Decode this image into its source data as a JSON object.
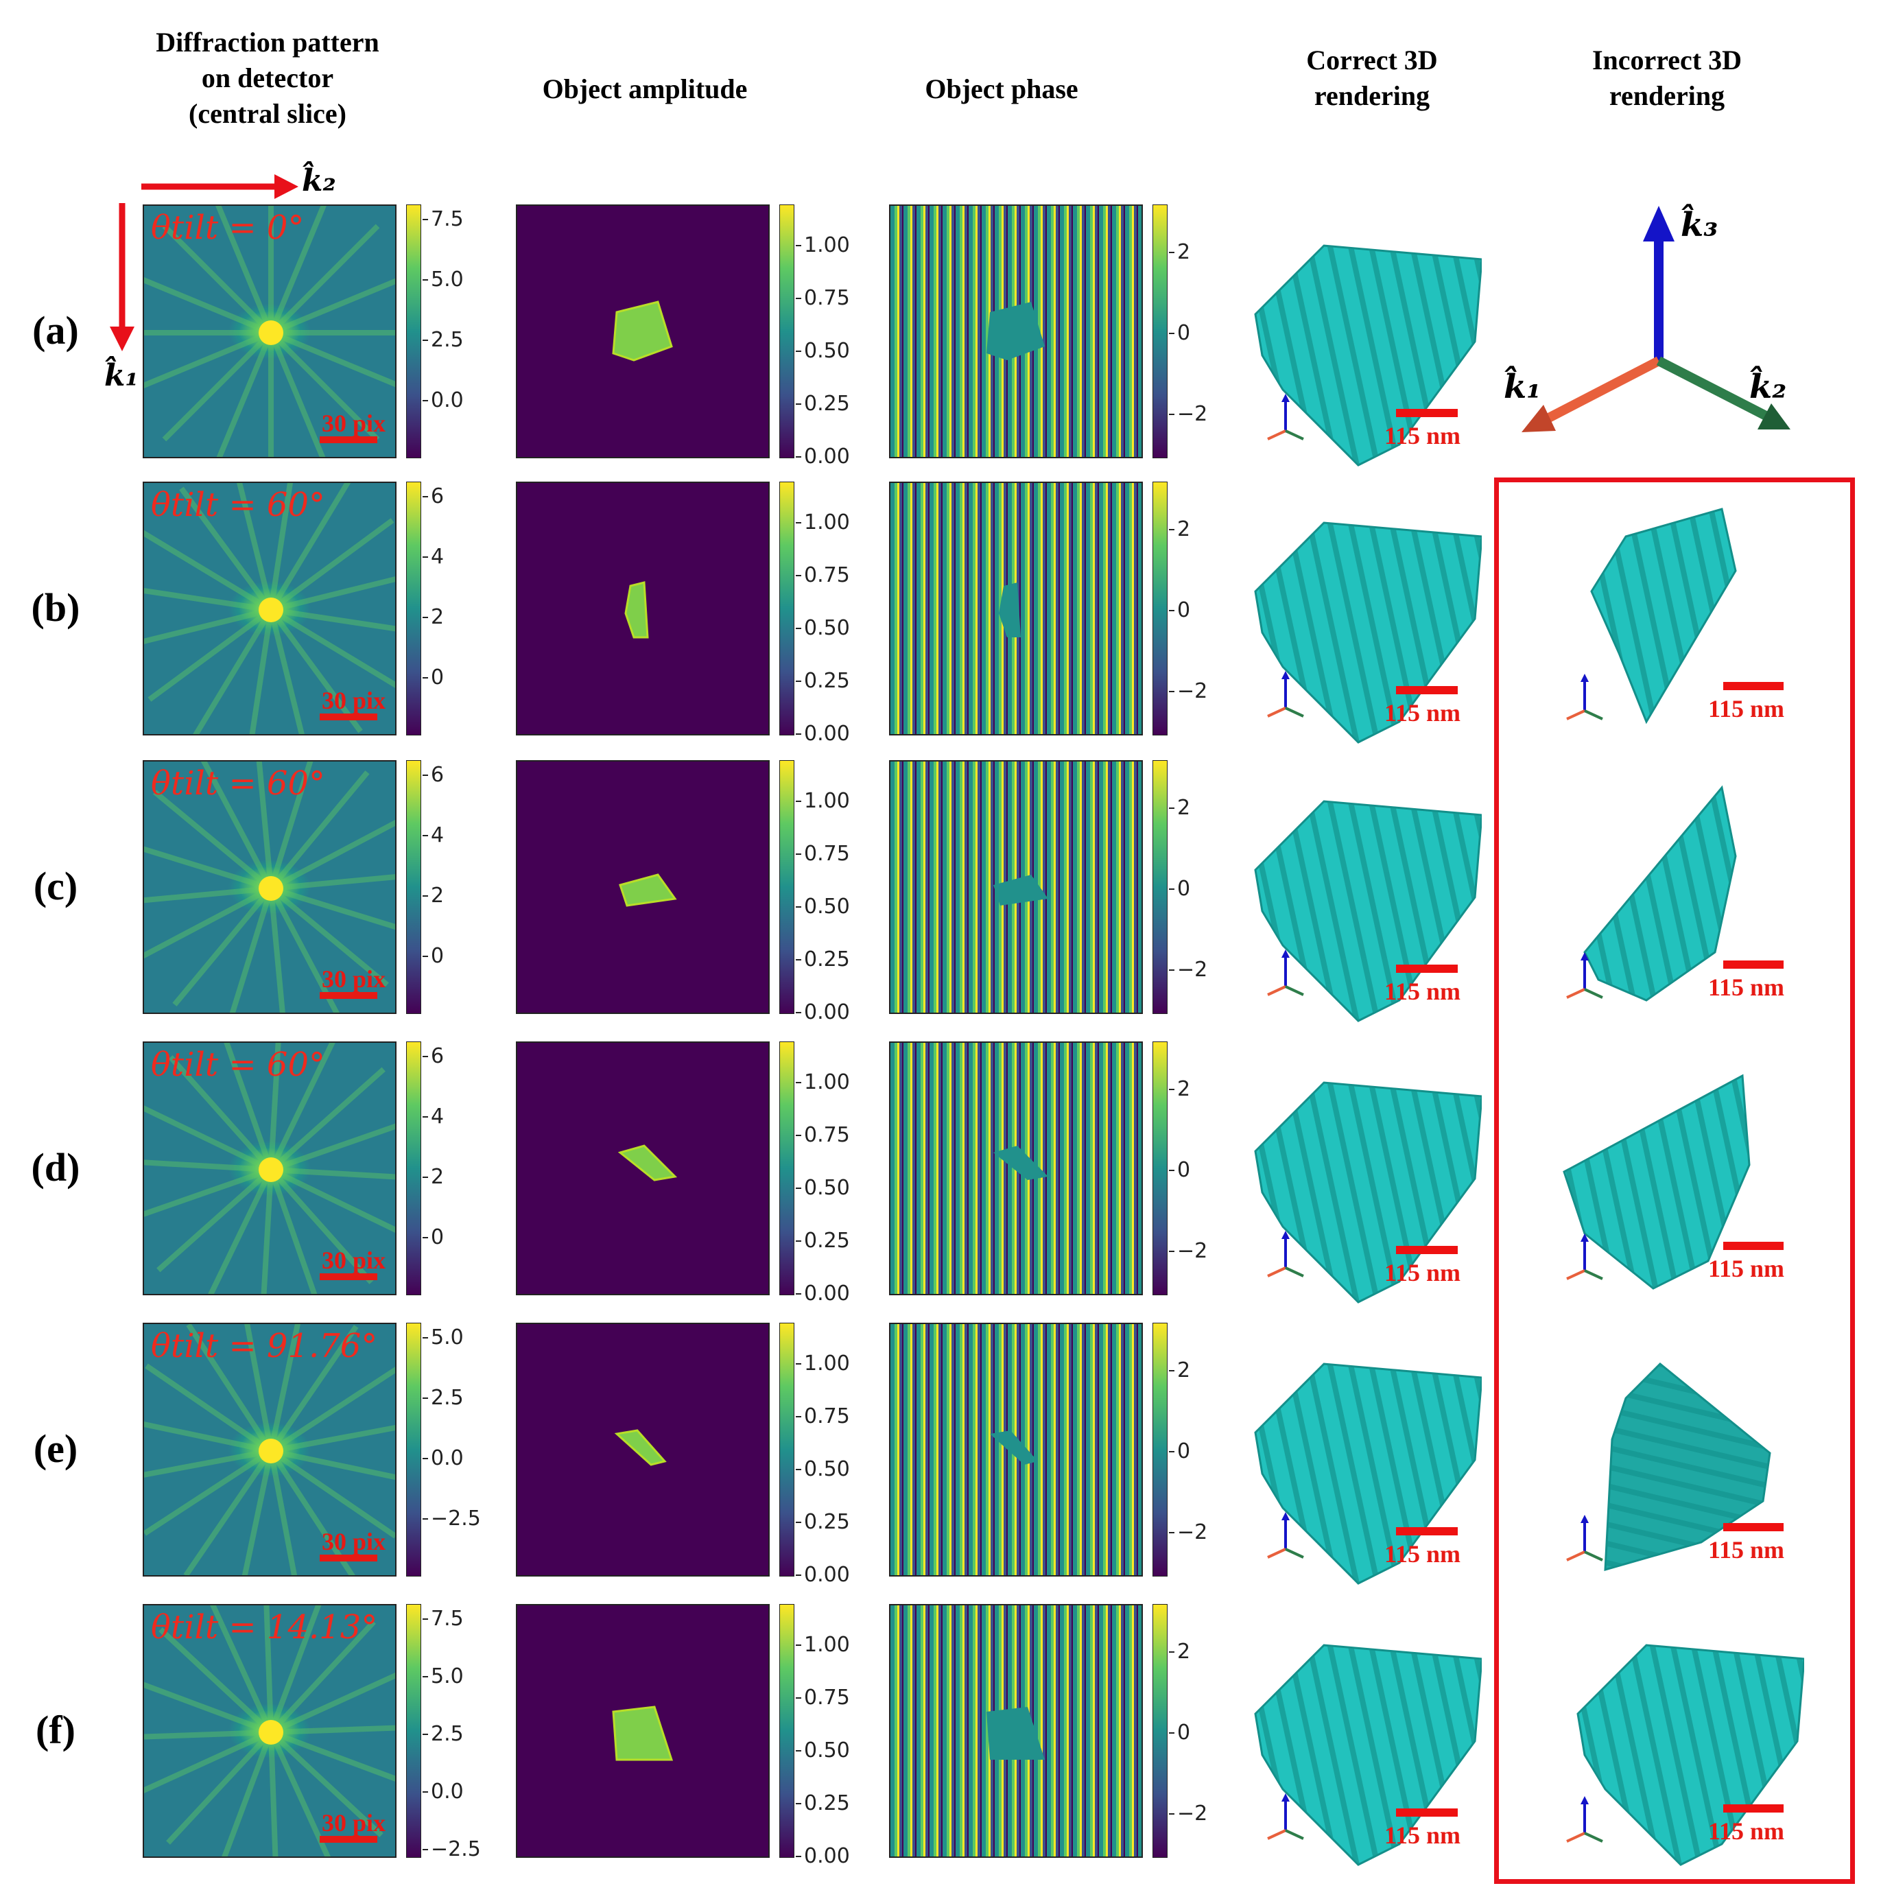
{
  "headers": {
    "diffraction": [
      "Diffraction pattern",
      "on detector",
      "(central slice)"
    ],
    "amplitude": "Object amplitude",
    "phase": "Object phase",
    "correct": [
      "Correct 3D",
      "rendering"
    ],
    "incorrect": [
      "Incorrect 3D",
      "rendering"
    ]
  },
  "axes": {
    "k1": "k̂₁",
    "k2": "k̂₂",
    "k3": "k̂₃"
  },
  "scalebar_pix": "30 pix",
  "scalebar_nm": "115 nm",
  "amplitude_ticks": [
    "1.00",
    "0.75",
    "0.50",
    "0.25",
    "0.00"
  ],
  "phase_ticks": [
    "2",
    "0",
    "−2"
  ],
  "rows": [
    {
      "label": "(a)",
      "theta": "θtilt = 0°",
      "diff_ticks": [
        "7.5",
        "5.0",
        "2.5",
        "0.0"
      ]
    },
    {
      "label": "(b)",
      "theta": "θtilt = 60°",
      "diff_ticks": [
        "6",
        "4",
        "2",
        "0"
      ]
    },
    {
      "label": "(c)",
      "theta": "θtilt = 60°",
      "diff_ticks": [
        "6",
        "4",
        "2",
        "0"
      ]
    },
    {
      "label": "(d)",
      "theta": "θtilt = 60°",
      "diff_ticks": [
        "6",
        "4",
        "2",
        "0"
      ]
    },
    {
      "label": "(e)",
      "theta": "θtilt = 91.76°",
      "diff_ticks": [
        "5.0",
        "2.5",
        "0.0",
        "−2.5"
      ]
    },
    {
      "label": "(f)",
      "theta": "θtilt = 14.13°",
      "diff_ticks": [
        "7.5",
        "5.0",
        "2.5",
        "0.0",
        "−2.5"
      ]
    }
  ],
  "colors": {
    "viridis_dark": "#440154",
    "viridis_mid": "#21918c",
    "viridis_bright": "#fde725",
    "crystal": "#22c2bd",
    "annotation_red": "#e61a14",
    "axis_blue": "#1414c8",
    "axis_green": "#2e7d4a",
    "axis_orange": "#e8603c"
  }
}
